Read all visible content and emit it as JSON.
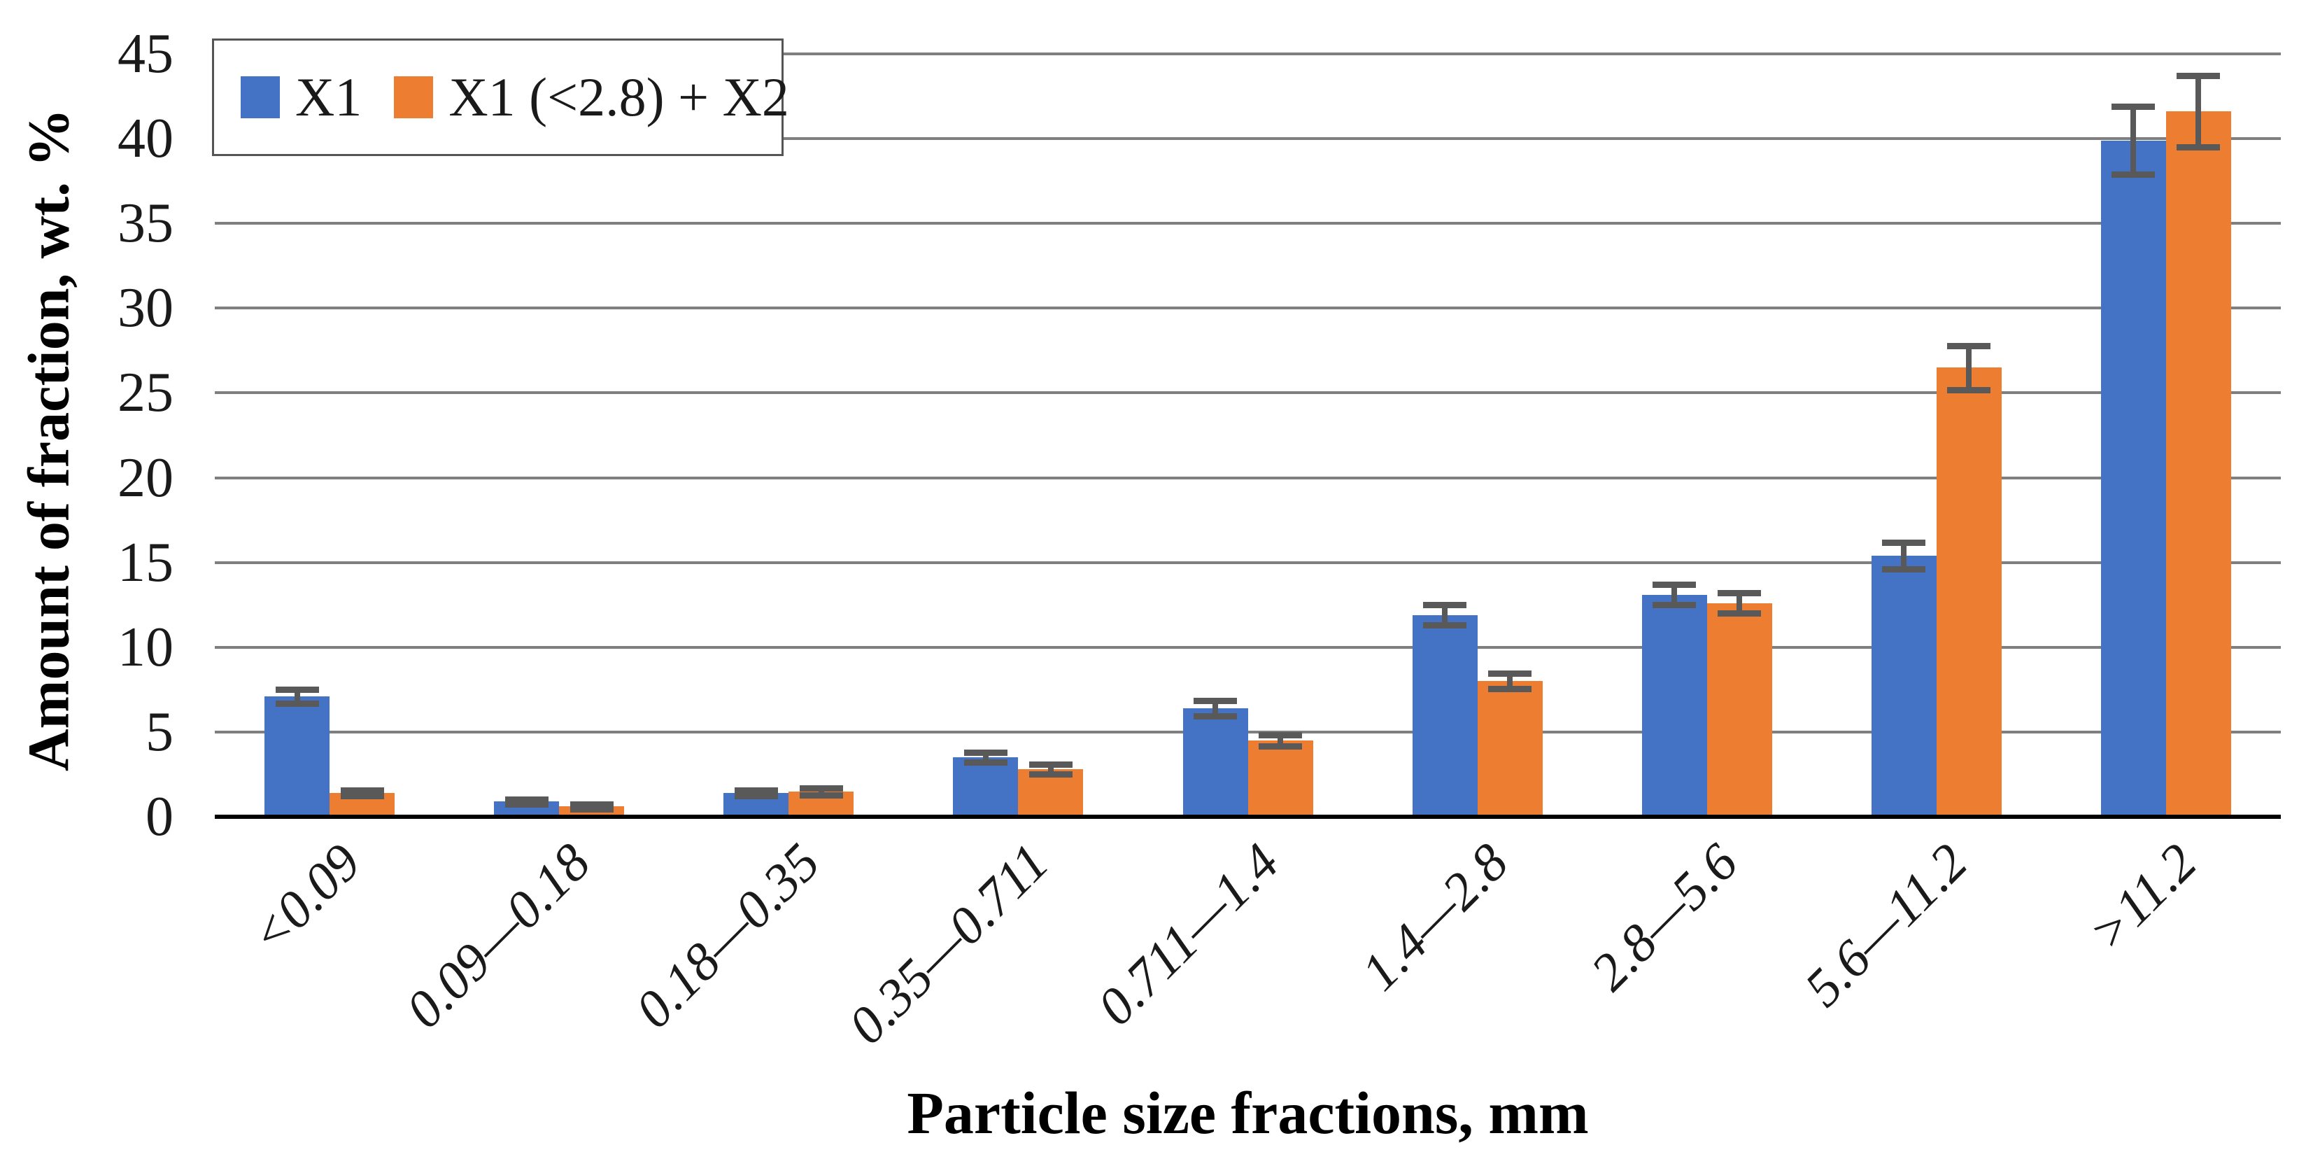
{
  "chart_data": {
    "type": "bar",
    "title": "",
    "xlabel": "Particle size fractions, mm",
    "ylabel": "Amount of fraction, wt. %",
    "categories": [
      "<0.09",
      "0.09—0.18",
      "0.18—0.35",
      "0.35—0.711",
      "0.711—1.4",
      "1.4—2.8",
      "2.8—5.6",
      "5.6—11.2",
      ">11.2"
    ],
    "series": [
      {
        "name": "X1",
        "color": "#4472C4",
        "values": [
          7.1,
          0.9,
          1.4,
          3.5,
          6.4,
          11.9,
          13.1,
          15.4,
          39.9
        ],
        "errors": [
          0.4,
          0.15,
          0.15,
          0.3,
          0.45,
          0.6,
          0.6,
          0.8,
          2.0
        ]
      },
      {
        "name": "X1 (<2.8) + X2",
        "color": "#ED7D31",
        "values": [
          1.4,
          0.6,
          1.5,
          2.8,
          4.5,
          8.0,
          12.6,
          26.5,
          41.6
        ],
        "errors": [
          0.15,
          0.15,
          0.2,
          0.3,
          0.35,
          0.45,
          0.6,
          1.3,
          2.1
        ]
      }
    ],
    "ylim": [
      0,
      45
    ],
    "yticks": [
      0,
      5,
      10,
      15,
      20,
      25,
      30,
      35,
      40,
      45
    ],
    "grid": "horizontal gridlines on",
    "legend_position": "top-left inside plot, boxed",
    "error_bars": "symmetric, capped",
    "colors": {
      "gridline": "#7F7F7F",
      "axis_line": "#000000",
      "error_bar": "#595959",
      "text": "#1a1a1a"
    }
  }
}
